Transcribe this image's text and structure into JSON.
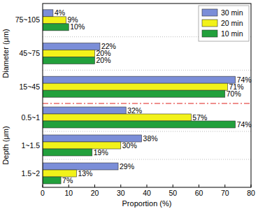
{
  "chart_data": [
    {
      "type": "bar",
      "orientation": "horizontal",
      "ylabel": "Diameter (μm)",
      "categories": [
        "75~105",
        "45~75",
        "15~45"
      ],
      "series": [
        {
          "name": "30 min",
          "color": "#7b8ed8",
          "values": [
            4,
            22,
            74
          ],
          "value_labels": [
            "4%",
            "22%",
            "74%"
          ]
        },
        {
          "name": "20 min",
          "color": "#f2f21a",
          "values": [
            9,
            20,
            71
          ],
          "value_labels": [
            "9%",
            "20%",
            "71%"
          ]
        },
        {
          "name": "10 min",
          "color": "#22a03c",
          "values": [
            10,
            20,
            70
          ],
          "value_labels": [
            "10%",
            "20%",
            "70%"
          ]
        }
      ],
      "xlim": [
        0,
        80
      ],
      "data_labels": true,
      "legend": "upper right",
      "tick_labels": "y"
    },
    {
      "type": "bar",
      "orientation": "horizontal",
      "ylabel": "Depth (μm)",
      "xlabel": "Proportion (%)",
      "categories": [
        "0.5~1",
        "1~1.5",
        "1.5~2"
      ],
      "series": [
        {
          "color": "#7b8ed8",
          "values": [
            32,
            38,
            29
          ],
          "value_labels": [
            "32%",
            "38%",
            "29%"
          ]
        },
        {
          "color": "#f2f21a",
          "values": [
            57,
            30,
            13
          ],
          "value_labels": [
            "57%",
            "30%",
            "13%"
          ]
        },
        {
          "color": "#22a03c",
          "values": [
            74,
            19,
            7
          ],
          "value_labels": [
            "74%",
            "19%",
            "7%"
          ]
        }
      ],
      "xlim": [
        0,
        80
      ],
      "xticks": [
        0,
        10,
        20,
        30,
        40,
        50,
        60,
        70,
        80
      ],
      "data_labels": true
    }
  ]
}
